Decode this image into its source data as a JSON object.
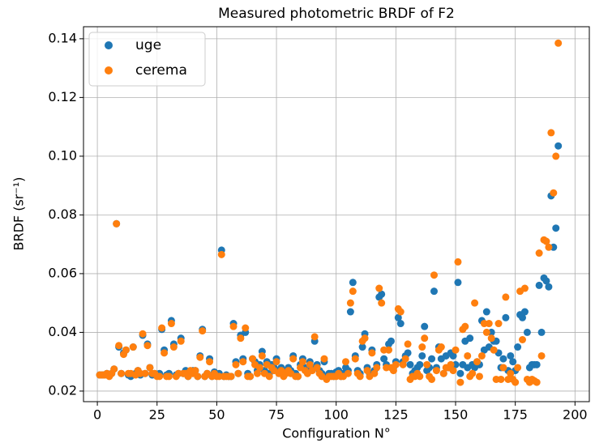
{
  "chart_data": {
    "type": "scatter",
    "title": "Measured photometric BRDF of F2",
    "xlabel": "Configuration N°",
    "ylabel": "BRDF (sr⁻¹)",
    "xlim": [
      -5.8,
      206
    ],
    "ylim": [
      0.0164,
      0.1441
    ],
    "xticks": [
      0,
      25,
      50,
      75,
      100,
      125,
      150,
      175,
      200
    ],
    "yticks": [
      0.02,
      0.04,
      0.06,
      0.08,
      {
        "value": 0.1,
        "label": "0.10"
      },
      0.12,
      0.14
    ],
    "grid": true,
    "legend": "upper-left",
    "x": [
      1,
      2,
      3,
      4,
      5,
      6,
      7,
      8,
      9,
      10,
      11,
      12,
      13,
      14,
      15,
      16,
      17,
      18,
      19,
      20,
      21,
      22,
      23,
      24,
      25,
      26,
      27,
      28,
      29,
      30,
      31,
      32,
      33,
      34,
      35,
      36,
      37,
      38,
      39,
      40,
      41,
      42,
      43,
      44,
      45,
      46,
      47,
      48,
      49,
      50,
      51,
      52,
      53,
      54,
      55,
      56,
      57,
      58,
      59,
      60,
      61,
      62,
      63,
      64,
      65,
      66,
      67,
      68,
      69,
      70,
      71,
      72,
      73,
      74,
      75,
      76,
      77,
      78,
      79,
      80,
      81,
      82,
      83,
      84,
      85,
      86,
      87,
      88,
      89,
      90,
      91,
      92,
      93,
      94,
      95,
      96,
      97,
      98,
      99,
      100,
      101,
      102,
      103,
      104,
      105,
      106,
      107,
      108,
      109,
      110,
      111,
      112,
      113,
      114,
      115,
      116,
      117,
      118,
      119,
      120,
      121,
      122,
      123,
      124,
      125,
      126,
      127,
      128,
      129,
      130,
      131,
      132,
      133,
      134,
      135,
      136,
      137,
      138,
      139,
      140,
      141,
      142,
      143,
      144,
      145,
      146,
      147,
      148,
      149,
      150,
      151,
      152,
      153,
      154,
      155,
      156,
      157,
      158,
      159,
      160,
      161,
      162,
      163,
      164,
      165,
      166,
      167,
      168,
      169,
      170,
      171,
      172,
      173,
      174,
      175,
      176,
      177,
      178,
      179,
      180,
      181,
      182,
      183,
      184,
      185,
      186,
      187,
      188,
      189,
      190,
      191,
      192,
      193
    ],
    "series": [
      {
        "name": "uge",
        "color": "#1f77b4",
        "values": [
          0.0255,
          0.0255,
          0.0255,
          0.026,
          0.0255,
          0.026,
          0.0275,
          0.077,
          0.035,
          0.026,
          0.033,
          0.034,
          0.0255,
          0.025,
          0.035,
          0.026,
          0.027,
          0.0255,
          0.039,
          0.026,
          0.036,
          0.028,
          0.0255,
          0.026,
          0.0255,
          0.026,
          0.041,
          0.034,
          0.0255,
          0.026,
          0.044,
          0.036,
          0.0255,
          0.026,
          0.038,
          0.026,
          0.027,
          0.025,
          0.0265,
          0.027,
          0.027,
          0.025,
          0.032,
          0.041,
          0.025,
          0.026,
          0.031,
          0.025,
          0.0265,
          0.0255,
          0.026,
          0.068,
          0.025,
          0.0255,
          0.025,
          0.025,
          0.043,
          0.03,
          0.026,
          0.039,
          0.031,
          0.04,
          0.026,
          0.025,
          0.031,
          0.03,
          0.027,
          0.029,
          0.0335,
          0.027,
          0.03,
          0.026,
          0.029,
          0.028,
          0.031,
          0.027,
          0.028,
          0.026,
          0.027,
          0.028,
          0.027,
          0.032,
          0.026,
          0.025,
          0.029,
          0.031,
          0.028,
          0.027,
          0.03,
          0.028,
          0.037,
          0.029,
          0.027,
          0.026,
          0.03,
          0.025,
          0.026,
          0.026,
          0.025,
          0.0265,
          0.027,
          0.025,
          0.026,
          0.028,
          0.027,
          0.047,
          0.057,
          0.032,
          0.027,
          0.026,
          0.035,
          0.0395,
          0.028,
          0.026,
          0.034,
          0.027,
          0.029,
          0.052,
          0.053,
          0.031,
          0.029,
          0.036,
          0.037,
          0.028,
          0.03,
          0.045,
          0.043,
          0.03,
          0.032,
          0.033,
          0.029,
          0.026,
          0.027,
          0.028,
          0.029,
          0.032,
          0.042,
          0.027,
          0.028,
          0.031,
          0.054,
          0.028,
          0.035,
          0.031,
          0.026,
          0.032,
          0.028,
          0.033,
          0.032,
          0.029,
          0.057,
          0.026,
          0.029,
          0.037,
          0.028,
          0.038,
          0.029,
          0.028,
          0.03,
          0.029,
          0.044,
          0.034,
          0.047,
          0.035,
          0.04,
          0.037,
          0.037,
          0.033,
          0.028,
          0.031,
          0.045,
          0.027,
          0.032,
          0.03,
          0.027,
          0.035,
          0.046,
          0.045,
          0.047,
          0.04,
          0.028,
          0.029,
          0.029,
          0.029,
          0.056,
          0.04,
          0.0585,
          0.0575,
          0.0555,
          0.0865,
          0.069,
          0.0755,
          0.1035
        ]
      },
      {
        "name": "cerema",
        "color": "#ff7f0e",
        "values": [
          0.0255,
          0.0255,
          0.0255,
          0.026,
          0.025,
          0.026,
          0.0275,
          0.077,
          0.0355,
          0.026,
          0.0325,
          0.034,
          0.026,
          0.026,
          0.035,
          0.0255,
          0.027,
          0.026,
          0.0395,
          0.026,
          0.0355,
          0.028,
          0.026,
          0.026,
          0.025,
          0.025,
          0.0415,
          0.033,
          0.025,
          0.025,
          0.043,
          0.035,
          0.025,
          0.026,
          0.037,
          0.026,
          0.026,
          0.025,
          0.027,
          0.026,
          0.027,
          0.025,
          0.0315,
          0.0405,
          0.025,
          0.026,
          0.03,
          0.025,
          0.026,
          0.025,
          0.025,
          0.0665,
          0.025,
          0.025,
          0.025,
          0.025,
          0.042,
          0.029,
          0.026,
          0.038,
          0.03,
          0.0415,
          0.025,
          0.025,
          0.031,
          0.029,
          0.026,
          0.028,
          0.032,
          0.026,
          0.029,
          0.025,
          0.028,
          0.027,
          0.03,
          0.026,
          0.027,
          0.025,
          0.026,
          0.027,
          0.026,
          0.031,
          0.025,
          0.025,
          0.028,
          0.03,
          0.027,
          0.026,
          0.029,
          0.027,
          0.0385,
          0.028,
          0.026,
          0.025,
          0.031,
          0.024,
          0.025,
          0.025,
          0.025,
          0.025,
          0.026,
          0.025,
          0.025,
          0.03,
          0.026,
          0.05,
          0.054,
          0.031,
          0.026,
          0.025,
          0.037,
          0.038,
          0.027,
          0.025,
          0.033,
          0.026,
          0.028,
          0.055,
          0.05,
          0.034,
          0.028,
          0.034,
          0.028,
          0.027,
          0.029,
          0.048,
          0.047,
          0.029,
          0.031,
          0.036,
          0.024,
          0.025,
          0.025,
          0.026,
          0.025,
          0.035,
          0.038,
          0.029,
          0.025,
          0.024,
          0.0595,
          0.027,
          0.034,
          0.035,
          0.026,
          0.028,
          0.028,
          0.029,
          0.027,
          0.034,
          0.064,
          0.023,
          0.041,
          0.042,
          0.032,
          0.025,
          0.026,
          0.05,
          0.03,
          0.025,
          0.032,
          0.043,
          0.04,
          0.043,
          0.038,
          0.034,
          0.024,
          0.043,
          0.024,
          0.028,
          0.052,
          0.024,
          0.026,
          0.024,
          0.023,
          0.028,
          0.054,
          0.0375,
          0.055,
          0.024,
          0.023,
          0.024,
          0.0235,
          0.023,
          0.067,
          0.032,
          0.0715,
          0.071,
          0.069,
          0.108,
          0.0875,
          0.1,
          0.1385
        ]
      }
    ]
  }
}
